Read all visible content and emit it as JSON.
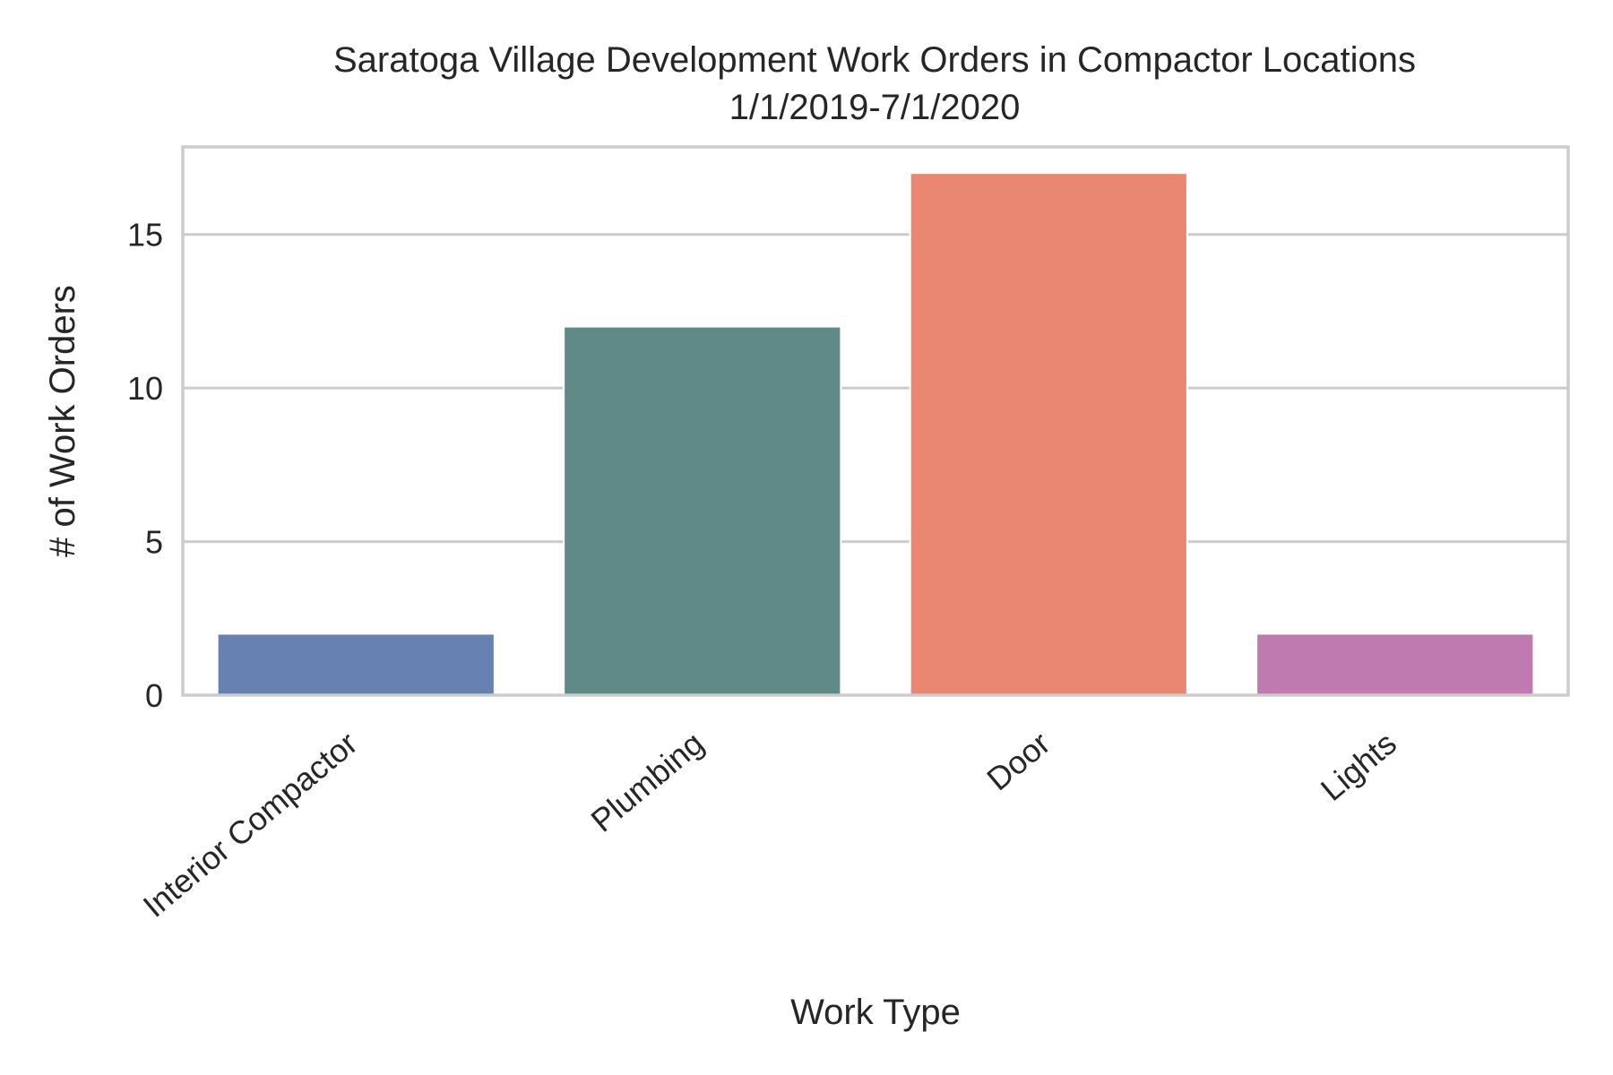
{
  "chart_data": {
    "type": "bar",
    "title": "Saratoga Village Development Work Orders in Compactor Locations",
    "subtitle": "1/1/2019-7/1/2020",
    "xlabel": "Work Type",
    "ylabel": "# of Work Orders",
    "categories": [
      "Interior Compactor",
      "Plumbing",
      "Door",
      "Lights"
    ],
    "values": [
      2,
      12,
      17,
      2
    ],
    "colors": [
      "#6781b3",
      "#5f8a88",
      "#e98770",
      "#bf7bb0"
    ],
    "ylim": [
      0,
      17.85
    ],
    "yticks": [
      0,
      5,
      10,
      15
    ],
    "grid": true,
    "legend": "none"
  }
}
